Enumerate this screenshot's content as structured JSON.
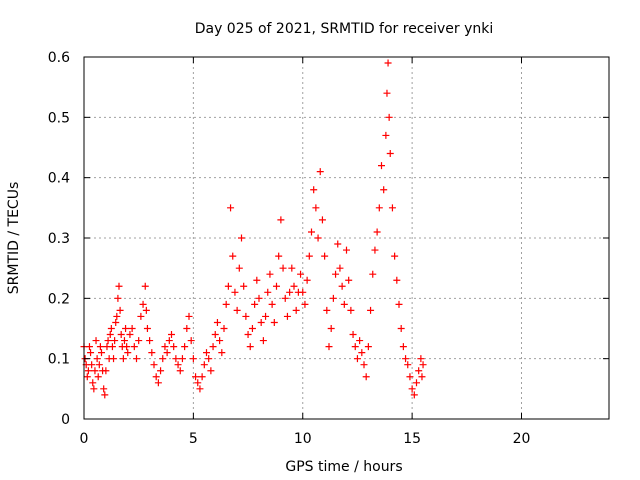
{
  "chart_data": {
    "type": "scatter",
    "title": "Day 025 of 2021, SRMTID for receiver ynki",
    "xlabel": "GPS time / hours",
    "ylabel": "SRMTID / TECUs",
    "xlim": [
      0,
      24
    ],
    "ylim": [
      0,
      0.6
    ],
    "xticks": [
      0,
      5,
      10,
      15,
      20
    ],
    "yticks": [
      0,
      0.1,
      0.2,
      0.3,
      0.4,
      0.5,
      0.6
    ],
    "xtick_labels": [
      "0",
      "5",
      "10",
      "15",
      "20"
    ],
    "ytick_labels": [
      "0",
      "0.1",
      "0.2",
      "0.3",
      "0.4",
      "0.5",
      "0.6"
    ],
    "grid": true,
    "marker": "+",
    "marker_color": "#ff0000",
    "series": [
      {
        "name": "SRMTID",
        "points": [
          [
            0.0,
            0.12
          ],
          [
            0.05,
            0.1
          ],
          [
            0.1,
            0.09
          ],
          [
            0.15,
            0.07
          ],
          [
            0.2,
            0.08
          ],
          [
            0.25,
            0.12
          ],
          [
            0.3,
            0.11
          ],
          [
            0.35,
            0.09
          ],
          [
            0.4,
            0.06
          ],
          [
            0.45,
            0.05
          ],
          [
            0.5,
            0.08
          ],
          [
            0.55,
            0.13
          ],
          [
            0.6,
            0.1
          ],
          [
            0.65,
            0.07
          ],
          [
            0.7,
            0.09
          ],
          [
            0.75,
            0.12
          ],
          [
            0.8,
            0.11
          ],
          [
            0.85,
            0.08
          ],
          [
            0.9,
            0.05
          ],
          [
            0.95,
            0.04
          ],
          [
            1.0,
            0.08
          ],
          [
            1.05,
            0.12
          ],
          [
            1.1,
            0.13
          ],
          [
            1.15,
            0.1
          ],
          [
            1.2,
            0.14
          ],
          [
            1.25,
            0.15
          ],
          [
            1.3,
            0.12
          ],
          [
            1.35,
            0.1
          ],
          [
            1.4,
            0.13
          ],
          [
            1.45,
            0.16
          ],
          [
            1.5,
            0.17
          ],
          [
            1.55,
            0.2
          ],
          [
            1.6,
            0.22
          ],
          [
            1.65,
            0.18
          ],
          [
            1.7,
            0.14
          ],
          [
            1.75,
            0.12
          ],
          [
            1.8,
            0.1
          ],
          [
            1.85,
            0.13
          ],
          [
            1.9,
            0.15
          ],
          [
            1.95,
            0.12
          ],
          [
            2.0,
            0.11
          ],
          [
            2.1,
            0.14
          ],
          [
            2.2,
            0.15
          ],
          [
            2.3,
            0.12
          ],
          [
            2.4,
            0.1
          ],
          [
            2.5,
            0.13
          ],
          [
            2.6,
            0.17
          ],
          [
            2.7,
            0.19
          ],
          [
            2.8,
            0.22
          ],
          [
            2.85,
            0.18
          ],
          [
            2.9,
            0.15
          ],
          [
            3.0,
            0.13
          ],
          [
            3.1,
            0.11
          ],
          [
            3.2,
            0.09
          ],
          [
            3.3,
            0.07
          ],
          [
            3.4,
            0.06
          ],
          [
            3.5,
            0.08
          ],
          [
            3.6,
            0.1
          ],
          [
            3.7,
            0.12
          ],
          [
            3.8,
            0.11
          ],
          [
            3.9,
            0.13
          ],
          [
            4.0,
            0.14
          ],
          [
            4.1,
            0.12
          ],
          [
            4.2,
            0.1
          ],
          [
            4.3,
            0.09
          ],
          [
            4.4,
            0.08
          ],
          [
            4.5,
            0.1
          ],
          [
            4.6,
            0.12
          ],
          [
            4.7,
            0.15
          ],
          [
            4.8,
            0.17
          ],
          [
            4.9,
            0.13
          ],
          [
            5.0,
            0.1
          ],
          [
            5.1,
            0.07
          ],
          [
            5.2,
            0.06
          ],
          [
            5.3,
            0.05
          ],
          [
            5.4,
            0.07
          ],
          [
            5.5,
            0.09
          ],
          [
            5.6,
            0.11
          ],
          [
            5.7,
            0.1
          ],
          [
            5.8,
            0.08
          ],
          [
            5.9,
            0.12
          ],
          [
            6.0,
            0.14
          ],
          [
            6.1,
            0.16
          ],
          [
            6.2,
            0.13
          ],
          [
            6.3,
            0.11
          ],
          [
            6.4,
            0.15
          ],
          [
            6.5,
            0.19
          ],
          [
            6.6,
            0.22
          ],
          [
            6.7,
            0.35
          ],
          [
            6.8,
            0.27
          ],
          [
            6.9,
            0.21
          ],
          [
            7.0,
            0.18
          ],
          [
            7.1,
            0.25
          ],
          [
            7.2,
            0.3
          ],
          [
            7.3,
            0.22
          ],
          [
            7.4,
            0.17
          ],
          [
            7.5,
            0.14
          ],
          [
            7.6,
            0.12
          ],
          [
            7.7,
            0.15
          ],
          [
            7.8,
            0.19
          ],
          [
            7.9,
            0.23
          ],
          [
            8.0,
            0.2
          ],
          [
            8.1,
            0.16
          ],
          [
            8.2,
            0.13
          ],
          [
            8.3,
            0.17
          ],
          [
            8.4,
            0.21
          ],
          [
            8.5,
            0.24
          ],
          [
            8.6,
            0.19
          ],
          [
            8.7,
            0.16
          ],
          [
            8.8,
            0.22
          ],
          [
            8.9,
            0.27
          ],
          [
            9.0,
            0.33
          ],
          [
            9.1,
            0.25
          ],
          [
            9.2,
            0.2
          ],
          [
            9.3,
            0.17
          ],
          [
            9.4,
            0.21
          ],
          [
            9.5,
            0.25
          ],
          [
            9.6,
            0.22
          ],
          [
            9.7,
            0.18
          ],
          [
            9.8,
            0.21
          ],
          [
            9.9,
            0.24
          ],
          [
            10.0,
            0.21
          ],
          [
            10.1,
            0.19
          ],
          [
            10.2,
            0.23
          ],
          [
            10.3,
            0.27
          ],
          [
            10.4,
            0.31
          ],
          [
            10.5,
            0.38
          ],
          [
            10.6,
            0.35
          ],
          [
            10.7,
            0.3
          ],
          [
            10.8,
            0.41
          ],
          [
            10.9,
            0.33
          ],
          [
            11.0,
            0.27
          ],
          [
            11.1,
            0.18
          ],
          [
            11.2,
            0.12
          ],
          [
            11.3,
            0.15
          ],
          [
            11.4,
            0.2
          ],
          [
            11.5,
            0.24
          ],
          [
            11.6,
            0.29
          ],
          [
            11.7,
            0.25
          ],
          [
            11.8,
            0.22
          ],
          [
            11.9,
            0.19
          ],
          [
            12.0,
            0.28
          ],
          [
            12.1,
            0.23
          ],
          [
            12.2,
            0.18
          ],
          [
            12.3,
            0.14
          ],
          [
            12.4,
            0.12
          ],
          [
            12.5,
            0.1
          ],
          [
            12.6,
            0.13
          ],
          [
            12.7,
            0.11
          ],
          [
            12.8,
            0.09
          ],
          [
            12.9,
            0.07
          ],
          [
            13.0,
            0.12
          ],
          [
            13.1,
            0.18
          ],
          [
            13.2,
            0.24
          ],
          [
            13.3,
            0.28
          ],
          [
            13.4,
            0.31
          ],
          [
            13.5,
            0.35
          ],
          [
            13.6,
            0.42
          ],
          [
            13.7,
            0.38
          ],
          [
            13.8,
            0.47
          ],
          [
            13.85,
            0.54
          ],
          [
            13.9,
            0.59
          ],
          [
            13.95,
            0.5
          ],
          [
            14.0,
            0.44
          ],
          [
            14.1,
            0.35
          ],
          [
            14.2,
            0.27
          ],
          [
            14.3,
            0.23
          ],
          [
            14.4,
            0.19
          ],
          [
            14.5,
            0.15
          ],
          [
            14.6,
            0.12
          ],
          [
            14.7,
            0.1
          ],
          [
            14.8,
            0.09
          ],
          [
            14.9,
            0.07
          ],
          [
            15.0,
            0.05
          ],
          [
            15.1,
            0.04
          ],
          [
            15.2,
            0.06
          ],
          [
            15.3,
            0.08
          ],
          [
            15.4,
            0.1
          ],
          [
            15.45,
            0.07
          ],
          [
            15.5,
            0.09
          ]
        ]
      }
    ]
  }
}
